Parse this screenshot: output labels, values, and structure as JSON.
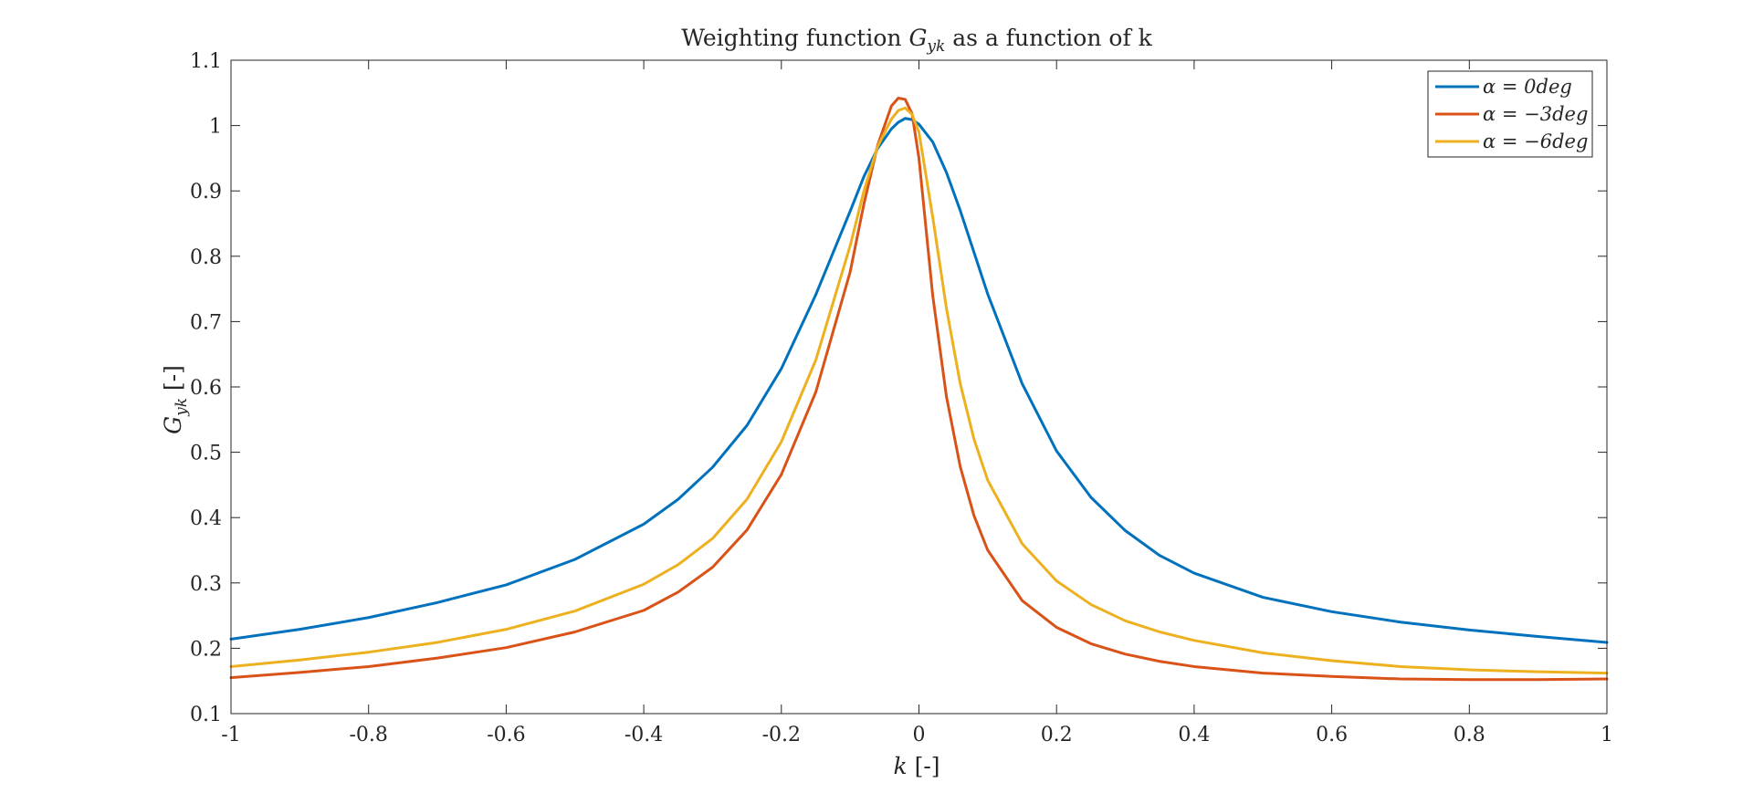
{
  "chart_data": {
    "type": "line",
    "title": "Weighting function G_yk as a function of k",
    "title_parts": {
      "prefix": "Weighting function ",
      "symbol": "G",
      "subscript": "yk",
      "suffix": " as a function of k"
    },
    "xlabel": "k [-]",
    "xlabel_parts": {
      "symbol": "k",
      "unit": " [-]"
    },
    "ylabel": "G_yk [-]",
    "ylabel_parts": {
      "symbol": "G",
      "subscript": "yk",
      "unit": " [-]"
    },
    "xlim": [
      -1,
      1
    ],
    "ylim": [
      0.1,
      1.1
    ],
    "xticks": [
      -1,
      -0.8,
      -0.6,
      -0.4,
      -0.2,
      0,
      0.2,
      0.4,
      0.6,
      0.8,
      1
    ],
    "xtick_labels": [
      "-1",
      "-0.8",
      "-0.6",
      "-0.4",
      "-0.2",
      "0",
      "0.2",
      "0.4",
      "0.6",
      "0.8",
      "1"
    ],
    "yticks": [
      0.1,
      0.2,
      0.3,
      0.4,
      0.5,
      0.6,
      0.7,
      0.8,
      0.9,
      1,
      1.1
    ],
    "ytick_labels": [
      "0.1",
      "0.2",
      "0.3",
      "0.4",
      "0.5",
      "0.6",
      "0.7",
      "0.8",
      "0.9",
      "1",
      "1.1"
    ],
    "grid": false,
    "legend_position": "top-right",
    "x": [
      -1,
      -0.9,
      -0.8,
      -0.7,
      -0.6,
      -0.5,
      -0.4,
      -0.35,
      -0.3,
      -0.25,
      -0.2,
      -0.15,
      -0.1,
      -0.08,
      -0.06,
      -0.04,
      -0.03,
      -0.02,
      -0.01,
      0,
      0.02,
      0.04,
      0.06,
      0.08,
      0.1,
      0.15,
      0.2,
      0.25,
      0.3,
      0.35,
      0.4,
      0.5,
      0.6,
      0.7,
      0.8,
      0.9,
      1
    ],
    "series": [
      {
        "name": "α = 0deg",
        "color": "#0072BD",
        "values": [
          0.214,
          0.229,
          0.247,
          0.27,
          0.297,
          0.336,
          0.39,
          0.428,
          0.477,
          0.541,
          0.628,
          0.741,
          0.869,
          0.922,
          0.965,
          0.995,
          1.005,
          1.011,
          1.009,
          1.002,
          0.975,
          0.928,
          0.87,
          0.806,
          0.742,
          0.605,
          0.502,
          0.431,
          0.38,
          0.342,
          0.315,
          0.278,
          0.256,
          0.24,
          0.228,
          0.218,
          0.209
        ]
      },
      {
        "name": "α = -3deg",
        "color": "#D95319",
        "values": [
          0.155,
          0.163,
          0.172,
          0.185,
          0.201,
          0.225,
          0.258,
          0.286,
          0.324,
          0.381,
          0.466,
          0.592,
          0.776,
          0.88,
          0.97,
          1.03,
          1.042,
          1.04,
          1.018,
          0.95,
          0.74,
          0.585,
          0.478,
          0.403,
          0.35,
          0.273,
          0.232,
          0.207,
          0.191,
          0.18,
          0.172,
          0.162,
          0.157,
          0.153,
          0.152,
          0.152,
          0.153
        ]
      },
      {
        "name": "α = -6deg",
        "color": "#EDB120",
        "values": [
          0.172,
          0.182,
          0.194,
          0.209,
          0.229,
          0.257,
          0.298,
          0.328,
          0.368,
          0.428,
          0.516,
          0.641,
          0.816,
          0.9,
          0.968,
          1.01,
          1.023,
          1.027,
          1.017,
          0.99,
          0.86,
          0.72,
          0.605,
          0.52,
          0.457,
          0.36,
          0.303,
          0.267,
          0.242,
          0.225,
          0.212,
          0.193,
          0.181,
          0.172,
          0.167,
          0.164,
          0.162
        ]
      }
    ],
    "legend_entries": [
      {
        "prefix": "α = ",
        "value": "0deg"
      },
      {
        "prefix": "α = ",
        "value": "−3deg"
      },
      {
        "prefix": "α = ",
        "value": "−6deg"
      }
    ]
  }
}
